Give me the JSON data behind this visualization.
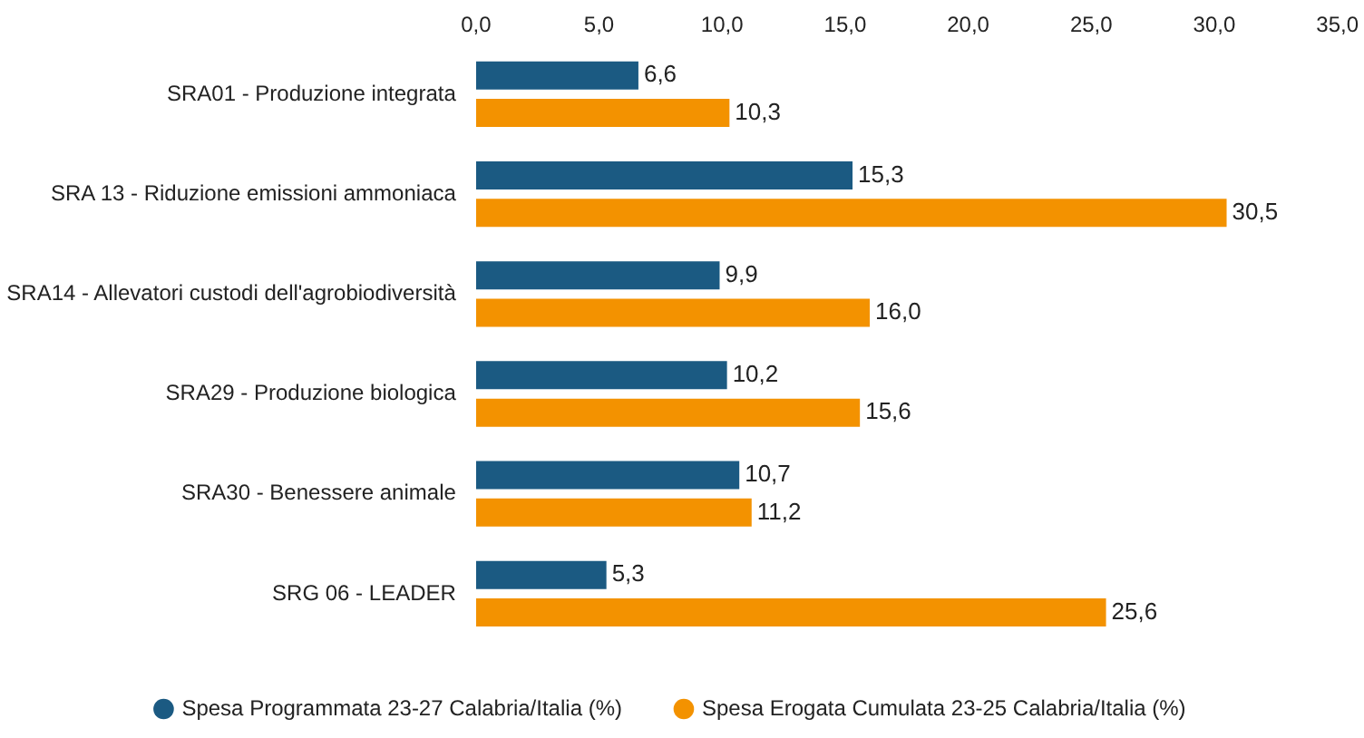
{
  "chart_data": {
    "type": "bar",
    "orientation": "horizontal",
    "categories": [
      "SRA01 - Produzione integrata",
      "SRA 13 - Riduzione emissioni ammoniaca",
      "SRA14 - Allevatori custodi dell'agrobiodiversità",
      "SRA29 - Produzione biologica",
      "SRA30 - Benessere animale",
      "SRG 06 - LEADER"
    ],
    "series": [
      {
        "name": "Spesa Programmata 23-27 Calabria/Italia (%)",
        "color": "#1b5a82",
        "values": [
          6.6,
          15.3,
          9.9,
          10.2,
          10.7,
          5.3
        ],
        "value_labels": [
          "6,6",
          "15,3",
          "9,9",
          "10,2",
          "10,7",
          "5,3"
        ]
      },
      {
        "name": "Spesa Erogata Cumulata 23-25 Calabria/Italia (%)",
        "color": "#f39200",
        "values": [
          10.3,
          30.5,
          16.0,
          15.6,
          11.2,
          25.6
        ],
        "value_labels": [
          "10,3",
          "30,5",
          "16,0",
          "15,6",
          "11,2",
          "25,6"
        ]
      }
    ],
    "xlim": [
      0,
      35
    ],
    "xticks": [
      {
        "value": 0,
        "label": "0,0"
      },
      {
        "value": 5,
        "label": "5,0"
      },
      {
        "value": 10,
        "label": "10,0"
      },
      {
        "value": 15,
        "label": "15,0"
      },
      {
        "value": 20,
        "label": "20,0"
      },
      {
        "value": 25,
        "label": "25,0"
      },
      {
        "value": 30,
        "label": "30,0"
      },
      {
        "value": 35,
        "label": "35,0"
      }
    ],
    "grid": false,
    "legend": "bottom"
  }
}
